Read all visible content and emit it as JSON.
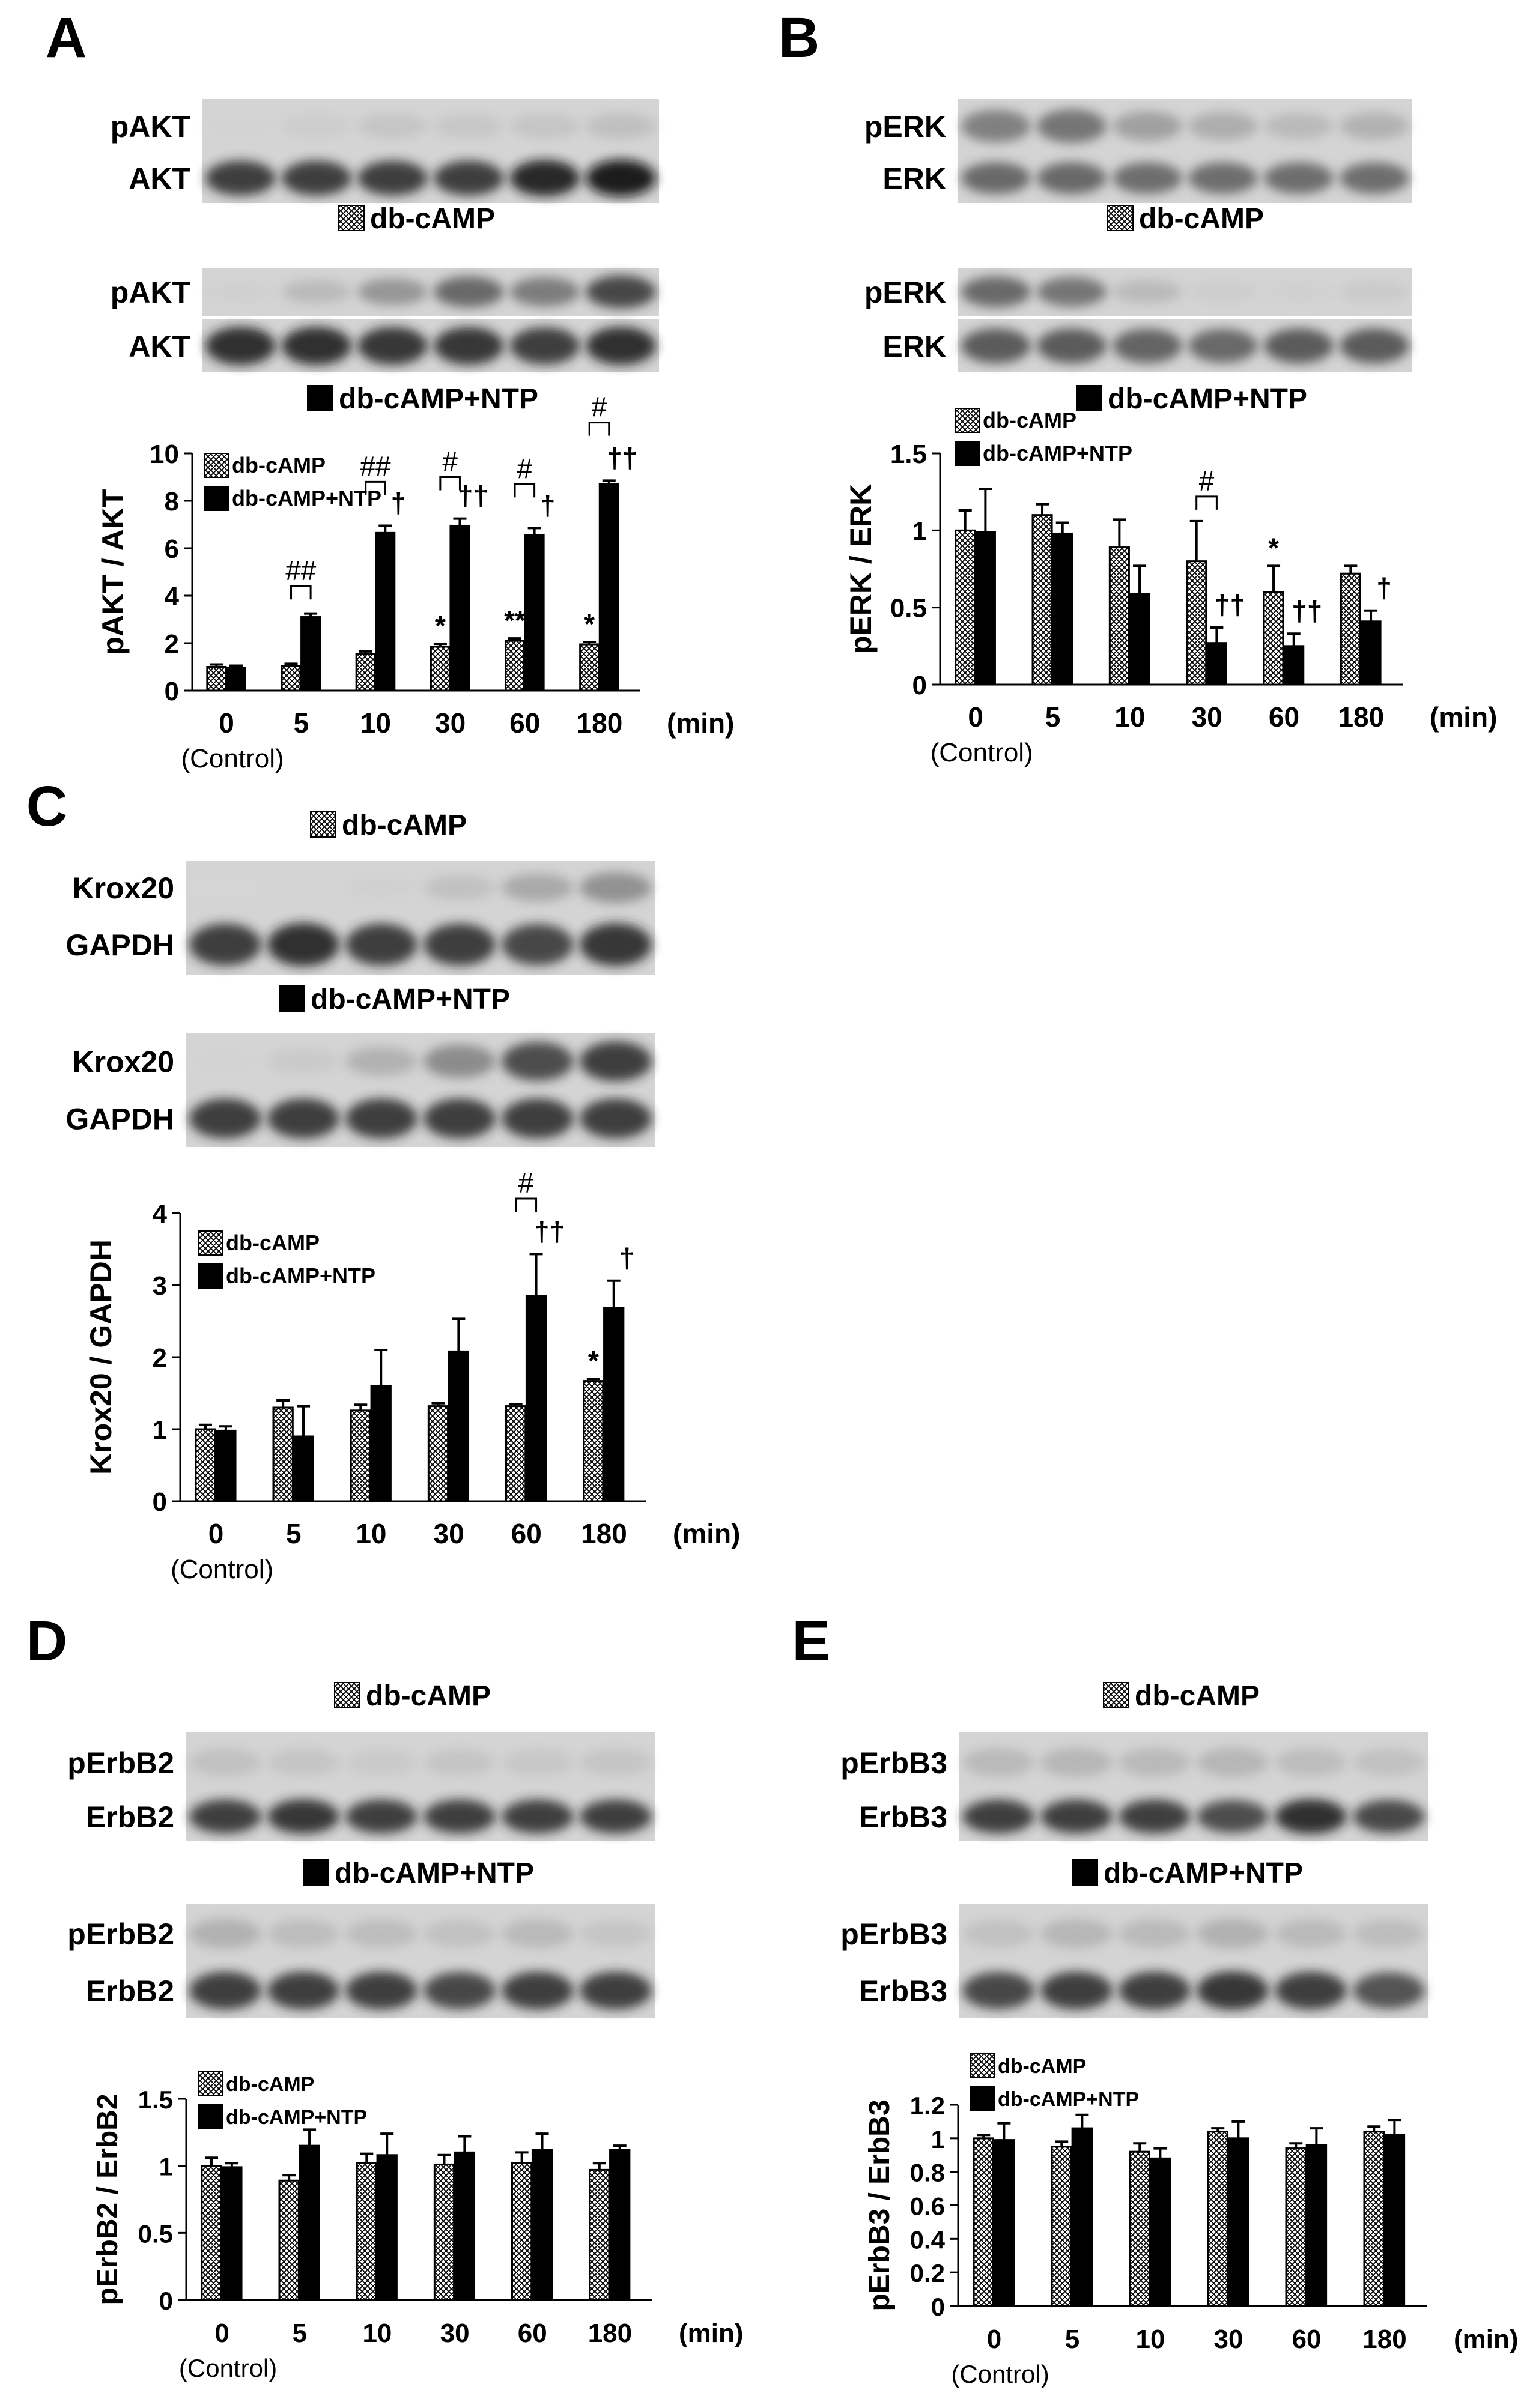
{
  "figure": {
    "panels": [
      {
        "letter": "A",
        "blots": [
          {
            "label": "db-cAMP",
            "legend_style": "hatched",
            "rows": [
              {
                "label": "pAKT",
                "bands": [
                  0.1,
                  0.15,
                  0.22,
                  0.2,
                  0.22,
                  0.26
                ]
              },
              {
                "label": "AKT",
                "bands": [
                  0.85,
                  0.85,
                  0.85,
                  0.85,
                  0.92,
                  0.95
                ]
              }
            ]
          },
          {
            "label": "db-cAMP+NTP",
            "legend_style": "solid",
            "rows": [
              {
                "label": "pAKT",
                "bands": [
                  0.12,
                  0.3,
                  0.5,
                  0.7,
                  0.62,
                  0.82
                ]
              },
              {
                "label": "AKT",
                "bands": [
                  0.9,
                  0.9,
                  0.88,
                  0.88,
                  0.85,
                  0.9
                ]
              }
            ]
          }
        ]
      },
      {
        "letter": "B",
        "blots": [
          {
            "label": "db-cAMP",
            "legend_style": "hatched",
            "rows": [
              {
                "label": "pERK",
                "bands": [
                  0.6,
                  0.65,
                  0.45,
                  0.38,
                  0.3,
                  0.35
                ]
              },
              {
                "label": "ERK",
                "bands": [
                  0.7,
                  0.7,
                  0.68,
                  0.68,
                  0.68,
                  0.68
                ]
              }
            ]
          },
          {
            "label": "db-cAMP+NTP",
            "legend_style": "solid",
            "rows": [
              {
                "label": "pERK",
                "bands": [
                  0.7,
                  0.65,
                  0.3,
                  0.15,
                  0.12,
                  0.18
                ]
              },
              {
                "label": "ERK",
                "bands": [
                  0.75,
                  0.75,
                  0.72,
                  0.7,
                  0.75,
                  0.75
                ]
              }
            ]
          }
        ]
      },
      {
        "letter": "C",
        "blots": [
          {
            "label": "db-cAMP",
            "legend_style": "hatched",
            "rows": [
              {
                "label": "Krox20",
                "bands": [
                  0.06,
                  0.08,
                  0.12,
                  0.25,
                  0.4,
                  0.52
                ]
              },
              {
                "label": "GAPDH",
                "bands": [
                  0.85,
                  0.9,
                  0.85,
                  0.85,
                  0.82,
                  0.88
                ]
              }
            ]
          },
          {
            "label": "db-cAMP+NTP",
            "legend_style": "solid",
            "rows": [
              {
                "label": "Krox20",
                "bands": [
                  0.1,
                  0.18,
                  0.35,
                  0.55,
                  0.8,
                  0.85
                ]
              },
              {
                "label": "GAPDH",
                "bands": [
                  0.85,
                  0.85,
                  0.85,
                  0.85,
                  0.85,
                  0.85
                ]
              }
            ]
          }
        ]
      },
      {
        "letter": "D",
        "blots": [
          {
            "label": "db-cAMP",
            "legend_style": "hatched",
            "rows": [
              {
                "label": "pErbB2",
                "bands": [
                  0.25,
                  0.22,
                  0.18,
                  0.22,
                  0.2,
                  0.22
                ]
              },
              {
                "label": "ErbB2",
                "bands": [
                  0.85,
                  0.88,
                  0.85,
                  0.85,
                  0.85,
                  0.85
                ]
              }
            ]
          },
          {
            "label": "db-cAMP+NTP",
            "legend_style": "solid",
            "rows": [
              {
                "label": "pErbB2",
                "bands": [
                  0.35,
                  0.28,
                  0.28,
                  0.25,
                  0.3,
                  0.22
                ]
              },
              {
                "label": "ErbB2",
                "bands": [
                  0.85,
                  0.85,
                  0.85,
                  0.82,
                  0.85,
                  0.85
                ]
              }
            ]
          }
        ]
      },
      {
        "letter": "E",
        "blots": [
          {
            "label": "db-cAMP",
            "legend_style": "hatched",
            "rows": [
              {
                "label": "pErbB3",
                "bands": [
                  0.3,
                  0.32,
                  0.3,
                  0.32,
                  0.28,
                  0.25
                ]
              },
              {
                "label": "ErbB3",
                "bands": [
                  0.85,
                  0.85,
                  0.85,
                  0.8,
                  0.9,
                  0.82
                ]
              }
            ]
          },
          {
            "label": "db-cAMP+NTP",
            "legend_style": "solid",
            "rows": [
              {
                "label": "pErbB3",
                "bands": [
                  0.25,
                  0.32,
                  0.3,
                  0.35,
                  0.3,
                  0.28
                ]
              },
              {
                "label": "ErbB3",
                "bands": [
                  0.82,
                  0.85,
                  0.85,
                  0.88,
                  0.85,
                  0.78
                ]
              }
            ]
          }
        ]
      }
    ]
  },
  "chart_data": [
    {
      "panel": "A",
      "type": "bar",
      "categories": [
        "0",
        "5",
        "10",
        "30",
        "60",
        "180"
      ],
      "category_sublabels": [
        "(Control)",
        "",
        "",
        "",
        "",
        ""
      ],
      "xunit": "(min)",
      "ylabel": "pAKT / AKT",
      "ylim": [
        0,
        10
      ],
      "yticks": [
        0,
        2,
        4,
        6,
        8,
        10
      ],
      "legend": {
        "position": "top-left"
      },
      "series": [
        {
          "name": "db-cAMP",
          "style": "hatched",
          "values": [
            1.0,
            1.05,
            1.55,
            1.85,
            2.1,
            1.95
          ],
          "errors": [
            0.1,
            0.08,
            0.1,
            0.12,
            0.1,
            0.1
          ]
        },
        {
          "name": "db-cAMP+NTP",
          "style": "solid",
          "values": [
            0.95,
            3.1,
            6.65,
            6.95,
            6.55,
            8.7
          ],
          "errors": [
            0.1,
            0.15,
            0.3,
            0.3,
            0.3,
            0.15
          ]
        }
      ],
      "annotations": [
        {
          "text": "*",
          "category": 3,
          "series": 0
        },
        {
          "text": "**",
          "category": 4,
          "series": 0
        },
        {
          "text": "*",
          "category": 5,
          "series": 0
        },
        {
          "text": "†",
          "category": 2,
          "series": 1
        },
        {
          "text": "††",
          "category": 3,
          "series": 1
        },
        {
          "text": "†",
          "category": 4,
          "series": 1
        },
        {
          "text": "††",
          "category": 5,
          "series": 1
        }
      ],
      "brackets": [
        {
          "text": "##",
          "category": 1,
          "y": 4.4
        },
        {
          "text": "##",
          "category": 2,
          "y": 8.8
        },
        {
          "text": "#",
          "category": 3,
          "y": 9.0
        },
        {
          "text": "#",
          "category": 4,
          "y": 8.7
        },
        {
          "text": "#",
          "category": 5,
          "y": 11.3
        }
      ]
    },
    {
      "panel": "B",
      "type": "bar",
      "categories": [
        "0",
        "5",
        "10",
        "30",
        "60",
        "180"
      ],
      "category_sublabels": [
        "(Control)",
        "",
        "",
        "",
        "",
        ""
      ],
      "xunit": "(min)",
      "ylabel": "pERK / ERK",
      "ylim": [
        0,
        1.5
      ],
      "yticks": [
        0,
        0.5,
        1,
        1.5
      ],
      "legend": {
        "position": "top-left"
      },
      "series": [
        {
          "name": "db-cAMP",
          "style": "hatched",
          "values": [
            1.0,
            1.1,
            0.89,
            0.8,
            0.6,
            0.72
          ],
          "errors": [
            0.13,
            0.07,
            0.18,
            0.26,
            0.17,
            0.05
          ]
        },
        {
          "name": "db-cAMP+NTP",
          "style": "solid",
          "values": [
            0.99,
            0.98,
            0.59,
            0.27,
            0.25,
            0.41
          ],
          "errors": [
            0.28,
            0.07,
            0.18,
            0.1,
            0.08,
            0.07
          ]
        }
      ],
      "annotations": [
        {
          "text": "††",
          "category": 3,
          "series": 1
        },
        {
          "text": "*",
          "category": 4,
          "series": 0
        },
        {
          "text": "††",
          "category": 4,
          "series": 1
        },
        {
          "text": "†",
          "category": 5,
          "series": 1
        }
      ],
      "brackets": [
        {
          "text": "#",
          "category": 3,
          "y": 1.22
        }
      ]
    },
    {
      "panel": "C",
      "type": "bar",
      "categories": [
        "0",
        "5",
        "10",
        "30",
        "60",
        "180"
      ],
      "category_sublabels": [
        "(Control)",
        "",
        "",
        "",
        "",
        ""
      ],
      "xunit": "(min)",
      "ylabel": "Krox20 / GAPDH",
      "ylim": [
        0,
        4
      ],
      "yticks": [
        0,
        1,
        2,
        3,
        4
      ],
      "legend": {
        "position": "top-left"
      },
      "series": [
        {
          "name": "db-cAMP",
          "style": "hatched",
          "values": [
            1.0,
            1.3,
            1.26,
            1.32,
            1.32,
            1.67
          ],
          "errors": [
            0.06,
            0.1,
            0.08,
            0.04,
            0.03,
            0.03
          ]
        },
        {
          "name": "db-cAMP+NTP",
          "style": "solid",
          "values": [
            0.98,
            0.9,
            1.6,
            2.08,
            2.85,
            2.68
          ],
          "errors": [
            0.06,
            0.42,
            0.5,
            0.45,
            0.58,
            0.38
          ]
        }
      ],
      "annotations": [
        {
          "text": "††",
          "category": 4,
          "series": 1
        },
        {
          "text": "*",
          "category": 5,
          "series": 0
        },
        {
          "text": "†",
          "category": 5,
          "series": 1
        }
      ],
      "brackets": [
        {
          "text": "#",
          "category": 4,
          "y": 4.2
        }
      ]
    },
    {
      "panel": "D",
      "type": "bar",
      "categories": [
        "0",
        "5",
        "10",
        "30",
        "60",
        "180"
      ],
      "category_sublabels": [
        "(Control)",
        "",
        "",
        "",
        "",
        ""
      ],
      "xunit": "(min)",
      "ylabel": "pErbB2 / ErbB2",
      "ylim": [
        0,
        1.5
      ],
      "yticks": [
        0,
        0.5,
        1,
        1.5
      ],
      "legend": {
        "position": "top-left"
      },
      "series": [
        {
          "name": "db-cAMP",
          "style": "hatched",
          "values": [
            1.0,
            0.89,
            1.02,
            1.01,
            1.02,
            0.97
          ],
          "errors": [
            0.06,
            0.04,
            0.07,
            0.07,
            0.08,
            0.05
          ]
        },
        {
          "name": "db-cAMP+NTP",
          "style": "solid",
          "values": [
            0.99,
            1.15,
            1.08,
            1.1,
            1.12,
            1.12
          ],
          "errors": [
            0.03,
            0.12,
            0.16,
            0.12,
            0.12,
            0.03
          ]
        }
      ],
      "annotations": [],
      "brackets": []
    },
    {
      "panel": "E",
      "type": "bar",
      "categories": [
        "0",
        "5",
        "10",
        "30",
        "60",
        "180"
      ],
      "category_sublabels": [
        "(Control)",
        "",
        "",
        "",
        "",
        ""
      ],
      "xunit": "(min)",
      "ylabel": "pErbB3 / ErbB3",
      "ylim": [
        0,
        1.2
      ],
      "yticks": [
        0,
        0.2,
        0.4,
        0.6,
        0.8,
        1,
        1.2
      ],
      "legend": {
        "position": "top-left"
      },
      "series": [
        {
          "name": "db-cAMP",
          "style": "hatched",
          "values": [
            1.0,
            0.95,
            0.92,
            1.04,
            0.94,
            1.04
          ],
          "errors": [
            0.02,
            0.03,
            0.05,
            0.02,
            0.03,
            0.03
          ]
        },
        {
          "name": "db-cAMP+NTP",
          "style": "solid",
          "values": [
            0.99,
            1.06,
            0.88,
            1.0,
            0.96,
            1.02
          ],
          "errors": [
            0.1,
            0.08,
            0.06,
            0.1,
            0.1,
            0.09
          ]
        }
      ],
      "annotations": [],
      "brackets": []
    }
  ]
}
